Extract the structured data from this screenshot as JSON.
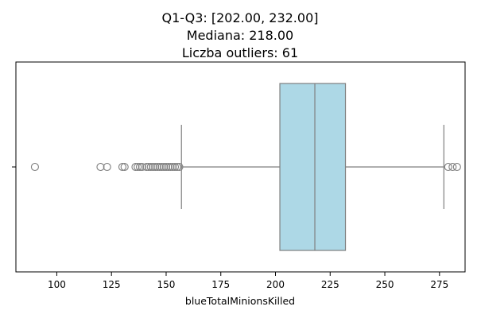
{
  "chart_data": {
    "type": "boxplot",
    "title_lines": [
      "Q1-Q3: [202.00, 232.00]",
      "Mediana: 218.00",
      "Liczba outliers: 61"
    ],
    "xlabel": "blueTotalMinionsKilled",
    "ylabel": "",
    "xlim": [
      81.3,
      286.7
    ],
    "x_ticks": [
      100,
      125,
      150,
      175,
      200,
      225,
      250,
      275
    ],
    "y_tick_labels": [
      ""
    ],
    "grid": false,
    "orientation": "horizontal",
    "box": {
      "q1": 202,
      "median": 218,
      "q3": 232,
      "whisker_low": 157,
      "whisker_high": 277,
      "fill_color": "#add8e6",
      "line_color": "#7f7f7f"
    },
    "outliers": [
      90,
      120,
      123,
      130,
      131,
      136,
      137,
      138,
      139,
      141,
      142,
      143,
      144,
      145,
      146,
      147,
      148,
      149,
      150,
      151,
      152,
      153,
      154,
      155,
      156,
      279,
      281,
      283
    ],
    "outlier_count": 61
  }
}
